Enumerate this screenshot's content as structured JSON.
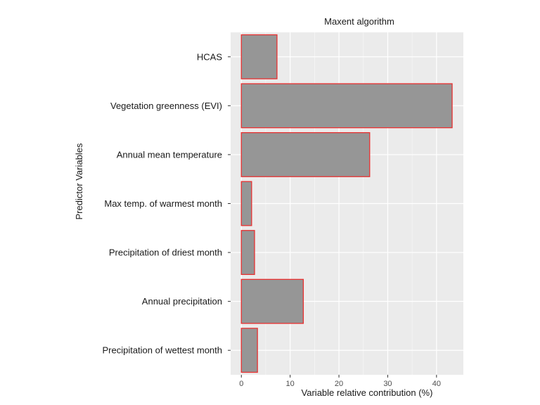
{
  "chart_data": {
    "type": "bar",
    "orientation": "horizontal",
    "title": "Maxent algorithm",
    "xlabel": "Variable relative contribution (%)",
    "ylabel": "Predictor Variables",
    "categories": [
      "HCAS",
      "Vegetation greenness (EVI)",
      "Annual mean temperature",
      "Max temp. of warmest month",
      "Precipitation of driest month",
      "Annual precipitation",
      "Precipitation of wettest month"
    ],
    "values": [
      7.3,
      43.2,
      26.3,
      2.1,
      2.7,
      12.7,
      3.3
    ],
    "xlim": [
      -2.2,
      45.5
    ],
    "xticks": [
      0,
      10,
      20,
      30,
      40
    ],
    "grid": true,
    "colors": {
      "bar_fill": "#969696",
      "bar_stroke": "#e83030",
      "panel_bg": "#ebebeb",
      "grid": "#ffffff"
    }
  }
}
